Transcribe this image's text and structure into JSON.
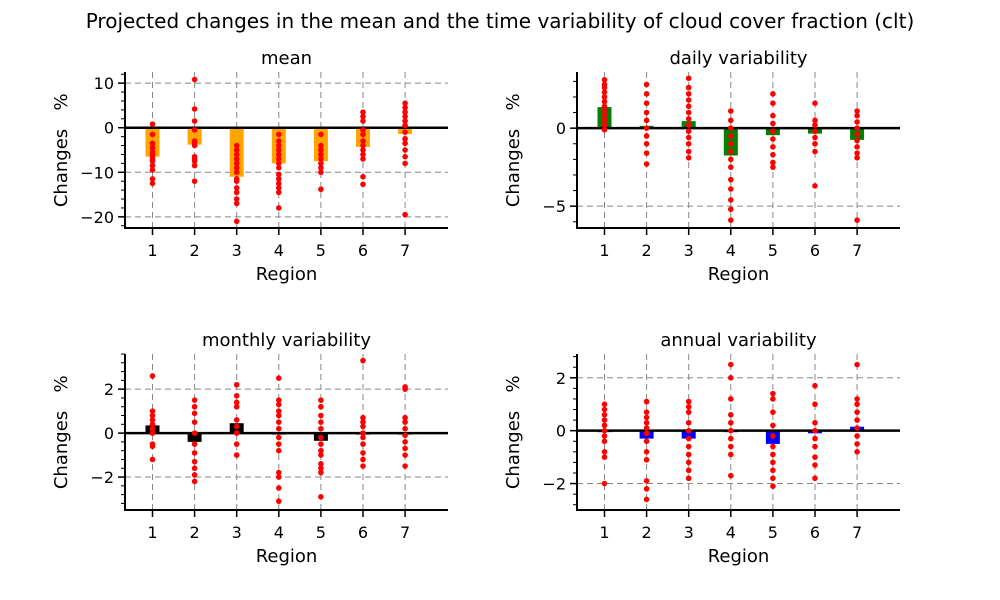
{
  "figure": {
    "title": "Projected changes in the mean and the time variability of cloud cover fraction (clt)"
  },
  "chart_data": [
    {
      "type": "bar",
      "title": "mean",
      "xlabel": "Region",
      "ylabel": "Changes",
      "yunit": "%",
      "categories": [
        "1",
        "2",
        "3",
        "4",
        "5",
        "6",
        "7"
      ],
      "bar_color": "#ffa500",
      "values": [
        -6.5,
        -3.8,
        -11.0,
        -8.0,
        -7.5,
        -4.3,
        -1.4
      ],
      "ylim": [
        -22.5,
        12.5
      ],
      "yticks": [
        10,
        0,
        -10,
        -20
      ],
      "grid": true,
      "scatter": [
        [
          0.8,
          -1.5,
          -3.5,
          -4.5,
          -5.5,
          -6.0,
          -6.5,
          -7.0,
          -7.5,
          -8.5,
          -9.5,
          -11.5,
          -12.5
        ],
        [
          10.8,
          4.2,
          1.5,
          -0.5,
          -3.0,
          -3.5,
          -4.0,
          -6.5,
          -7.0,
          -7.5,
          -8.5,
          -12.0
        ],
        [
          -4.0,
          -5.0,
          -6.0,
          -7.0,
          -8.0,
          -9.0,
          -10.0,
          -11.5,
          -12.0,
          -13.5,
          -14.5,
          -16.0,
          -17.0,
          -21.0
        ],
        [
          -1.5,
          -3.0,
          -4.0,
          -5.0,
          -6.0,
          -7.0,
          -8.0,
          -9.0,
          -10.5,
          -11.5,
          -12.5,
          -13.5,
          -14.5,
          -18.0
        ],
        [
          -1.5,
          -4.0,
          -5.0,
          -6.0,
          -7.0,
          -8.0,
          -9.0,
          -10.0,
          -13.8
        ],
        [
          3.5,
          2.5,
          1.5,
          -0.5,
          -1.5,
          -3.0,
          -4.0,
          -5.0,
          -6.0,
          -7.0,
          -11.0,
          -12.7
        ],
        [
          5.5,
          4.5,
          3.5,
          2.5,
          1.5,
          0.5,
          -1.0,
          -2.5,
          -3.5,
          -5.0,
          -6.5,
          -8.0,
          -19.5
        ]
      ]
    },
    {
      "type": "bar",
      "title": "daily variability",
      "xlabel": "Region",
      "ylabel": "Changes",
      "yunit": "%",
      "categories": [
        "1",
        "2",
        "3",
        "4",
        "5",
        "6",
        "7"
      ],
      "bar_color": "#008000",
      "values": [
        1.35,
        0.15,
        0.45,
        -1.75,
        -0.45,
        -0.35,
        -0.75
      ],
      "ylim": [
        -6.4,
        3.6
      ],
      "yticks": [
        0,
        -5
      ],
      "grid": true,
      "scatter": [
        [
          3.1,
          2.8,
          2.6,
          2.3,
          2.0,
          1.7,
          1.4,
          1.1,
          0.8,
          0.5,
          0.2,
          -0.1
        ],
        [
          2.8,
          2.2,
          1.6,
          1.0,
          0.5,
          0.0,
          -0.5,
          -1.0,
          -1.6,
          -2.3
        ],
        [
          3.2,
          2.6,
          2.2,
          1.8,
          1.4,
          1.0,
          0.6,
          0.2,
          -0.2,
          -0.6,
          -1.0,
          -1.5,
          -1.9
        ],
        [
          1.1,
          0.5,
          0.0,
          -0.5,
          -1.0,
          -1.5,
          -2.0,
          -2.5,
          -3.3,
          -3.9,
          -4.6,
          -5.2,
          -5.9
        ],
        [
          2.2,
          1.6,
          0.8,
          0.3,
          -0.2,
          -0.7,
          -1.2,
          -1.7,
          -2.2,
          -2.5
        ],
        [
          1.6,
          0.5,
          0.2,
          -0.2,
          -0.6,
          -1.0,
          -1.5,
          -3.7
        ],
        [
          1.1,
          0.8,
          0.4,
          0.0,
          -0.4,
          -0.8,
          -1.2,
          -1.6,
          -1.9,
          -5.9
        ]
      ]
    },
    {
      "type": "bar",
      "title": "monthly variability",
      "xlabel": "Region",
      "ylabel": "Changes",
      "yunit": "%",
      "categories": [
        "1",
        "2",
        "3",
        "4",
        "5",
        "6",
        "7"
      ],
      "bar_color": "#000000",
      "values": [
        0.35,
        -0.4,
        0.45,
        0.0,
        -0.35,
        -0.05,
        0.0
      ],
      "ylim": [
        -3.5,
        3.6
      ],
      "yticks": [
        2,
        0,
        -2
      ],
      "grid": true,
      "scatter": [
        [
          2.6,
          1.0,
          0.8,
          0.6,
          0.4,
          0.2,
          0.0,
          -0.5,
          -0.6,
          -1.2
        ],
        [
          1.5,
          1.2,
          0.9,
          0.5,
          0.0,
          -0.5,
          -0.9,
          -1.3,
          -1.6,
          -1.9,
          -2.2
        ],
        [
          2.2,
          1.7,
          1.4,
          1.2,
          0.6,
          0.3,
          0.0,
          -0.5,
          -1.0
        ],
        [
          2.5,
          1.5,
          1.3,
          1.0,
          0.8,
          0.5,
          0.2,
          -0.2,
          -0.5,
          -0.8,
          -1.8,
          -2.0,
          -2.5,
          -3.1
        ],
        [
          1.5,
          1.2,
          0.8,
          0.5,
          0.2,
          -0.2,
          -0.5,
          -0.8,
          -1.0,
          -1.4,
          -1.6,
          -1.8,
          -2.9
        ],
        [
          3.3,
          0.7,
          0.5,
          0.3,
          0.0,
          -0.2,
          -0.5,
          -0.9,
          -1.2,
          -1.5
        ],
        [
          2.1,
          2.0,
          0.7,
          0.5,
          0.2,
          -0.1,
          -0.4,
          -0.7,
          -1.0,
          -1.5
        ]
      ]
    },
    {
      "type": "bar",
      "title": "annual variability",
      "xlabel": "Region",
      "ylabel": "Changes",
      "yunit": "%",
      "categories": [
        "1",
        "2",
        "3",
        "4",
        "5",
        "6",
        "7"
      ],
      "bar_color": "#0000ff",
      "values": [
        0.0,
        -0.3,
        -0.3,
        0.0,
        -0.5,
        -0.1,
        0.15
      ],
      "ylim": [
        -3.0,
        2.9
      ],
      "yticks": [
        2,
        0,
        -2
      ],
      "grid": true,
      "scatter": [
        [
          1.0,
          0.8,
          0.6,
          0.4,
          0.2,
          0.0,
          -0.2,
          -0.4,
          -0.8,
          -1.0,
          -2.0
        ],
        [
          1.1,
          0.7,
          0.5,
          0.3,
          0.1,
          -0.1,
          -0.4,
          -0.8,
          -1.1,
          -1.9,
          -2.2,
          -2.6
        ],
        [
          1.1,
          0.9,
          0.7,
          0.3,
          0.0,
          -0.3,
          -0.6,
          -0.9,
          -1.2,
          -1.5,
          -1.8
        ],
        [
          2.5,
          2.0,
          1.2,
          0.6,
          0.3,
          0.0,
          -0.3,
          -0.6,
          -0.9,
          -1.7
        ],
        [
          1.4,
          1.2,
          0.7,
          0.2,
          -0.2,
          -0.6,
          -0.9,
          -1.2,
          -1.5,
          -1.8,
          -2.1
        ],
        [
          1.7,
          1.0,
          0.3,
          0.0,
          -0.3,
          -0.6,
          -1.0,
          -1.3,
          -1.8
        ],
        [
          2.5,
          1.2,
          1.0,
          0.7,
          0.4,
          0.1,
          -0.2,
          -0.5,
          -0.8
        ]
      ]
    }
  ]
}
